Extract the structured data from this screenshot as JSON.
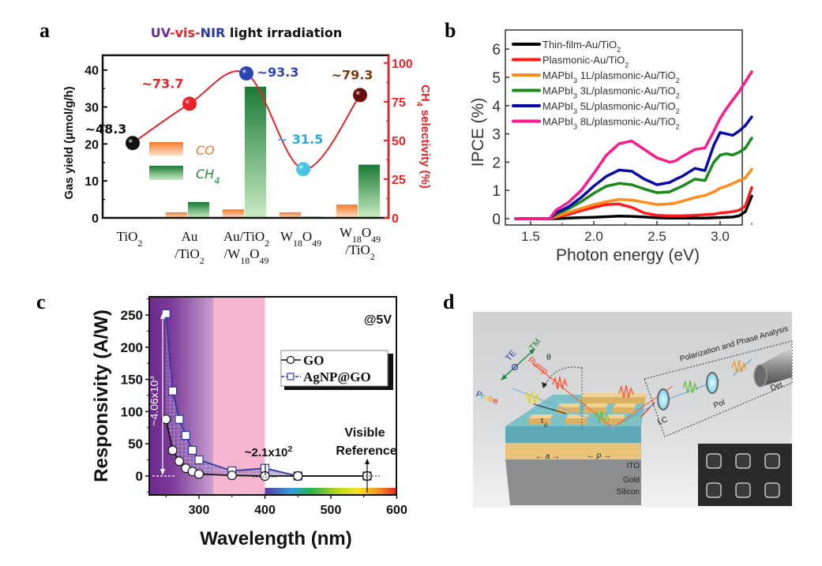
{
  "panels": {
    "a": "a",
    "b": "b",
    "c": "c",
    "d": "d"
  },
  "chart_data": [
    {
      "panel": "a",
      "type": "bar",
      "title_parts": [
        {
          "text": "UV",
          "color": "#6a2c91"
        },
        {
          "text": "-vis-",
          "color": "#e8242a"
        },
        {
          "text": "NIR",
          "color": "#2b3aa0"
        },
        {
          "text": " light irradiation",
          "color": "#111111"
        }
      ],
      "categories": [
        "TiO2",
        "Au/TiO2",
        "Au/TiO2/W18O49",
        "W18O49",
        "W18O49/TiO2"
      ],
      "category_labels": [
        [
          [
            {
              "t": "TiO"
            },
            {
              "t": "2",
              "sub": true
            }
          ]
        ],
        [
          [
            {
              "t": "Au"
            }
          ],
          [
            {
              "t": "/TiO"
            },
            {
              "t": "2",
              "sub": true
            }
          ]
        ],
        [
          [
            {
              "t": "Au/TiO"
            },
            {
              "t": "2",
              "sub": true
            }
          ],
          [
            {
              "t": "/W"
            },
            {
              "t": "18",
              "sub": true
            },
            {
              "t": "O"
            },
            {
              "t": "49",
              "sub": true
            }
          ]
        ],
        [
          [
            {
              "t": "W"
            },
            {
              "t": "18",
              "sub": true
            },
            {
              "t": "O"
            },
            {
              "t": "49",
              "sub": true
            }
          ]
        ],
        [
          [
            {
              "t": "W"
            },
            {
              "t": "18",
              "sub": true
            },
            {
              "t": "O"
            },
            {
              "t": "49",
              "sub": true
            }
          ],
          [
            {
              "t": "/TiO"
            },
            {
              "t": "2",
              "sub": true
            }
          ]
        ]
      ],
      "series": [
        {
          "name": "CO",
          "axis": "left",
          "color": "#f07a2a",
          "values": [
            0.1,
            1.5,
            2.3,
            1.5,
            3.6
          ]
        },
        {
          "name": "CH4",
          "axis": "left",
          "color": "#1f8a3a",
          "values": [
            0.1,
            4.3,
            35.5,
            0.3,
            14.4
          ]
        },
        {
          "name": "CH4 selectivity",
          "axis": "right",
          "type": "line",
          "color": "#e8242a",
          "values": [
            48.3,
            73.7,
            93.3,
            31.5,
            79.3
          ],
          "point_colors": [
            "#111111",
            "#e8242a",
            "#2d44b5",
            "#4cc3e0",
            "#6b0d0d"
          ],
          "label_colors": [
            "#111111",
            "#e8242a",
            "#2d44b5",
            "#2aa8de",
            "#7a3a14"
          ],
          "labels": [
            "~48.3",
            "~73.7",
            "~93.3",
            "~ 31.5",
            "~79.3"
          ]
        }
      ],
      "legend": [
        {
          "name": "CO",
          "color": "#f07a2a"
        },
        {
          "name": "CH",
          "sub": "4",
          "color": "#1f8a3a"
        }
      ],
      "legend_position": "center-left",
      "ylabel": "Gas yield (μmol/g/h)",
      "ylim": [
        0,
        44
      ],
      "yticks": [
        0,
        10,
        20,
        30,
        40
      ],
      "y2label": "CH4 selectivity (%)",
      "y2label_parts": [
        {
          "t": "CH"
        },
        {
          "t": "4",
          "sub": true
        },
        {
          "t": " selectivity (%)"
        }
      ],
      "y2lim": [
        0,
        105
      ],
      "y2ticks": [
        0,
        25,
        50,
        75,
        100
      ],
      "y2_color": "#e8242a"
    },
    {
      "panel": "b",
      "type": "line",
      "xlabel": "Photon energy (eV)",
      "ylabel": "IPCE (%)",
      "xlim": [
        1.3,
        3.35
      ],
      "ylim": [
        -0.2,
        6.6
      ],
      "xticks": [
        1.5,
        2.0,
        2.5,
        3.0
      ],
      "xtick_labels": [
        "1.5",
        "2.0",
        "2.5",
        "3.0"
      ],
      "yticks": [
        0,
        1,
        2,
        3,
        4,
        5,
        6
      ],
      "x": [
        1.38,
        1.45,
        1.5,
        1.55,
        1.6,
        1.65,
        1.7,
        1.8,
        1.9,
        2.0,
        2.1,
        2.2,
        2.3,
        2.4,
        2.5,
        2.6,
        2.65,
        2.7,
        2.8,
        2.88,
        2.95,
        3.0,
        3.05,
        3.1,
        3.15,
        3.2,
        3.25
      ],
      "legend_position": "top-left",
      "series": [
        {
          "name": "Thin-film-Au/TiO2",
          "label_parts": [
            {
              "t": "Thin-film-Au/TiO"
            },
            {
              "t": "2",
              "sub": true
            }
          ],
          "color": "#000000",
          "values": [
            0,
            0,
            0,
            0,
            0,
            0,
            0,
            0.02,
            0.04,
            0.05,
            0.07,
            0.09,
            0.08,
            0.06,
            0.03,
            0.02,
            0.02,
            0.02,
            0.02,
            0.02,
            0.03,
            0.04,
            0.05,
            0.06,
            0.1,
            0.25,
            0.8
          ]
        },
        {
          "name": "Plasmonic-Au/TiO2",
          "label_parts": [
            {
              "t": "Plasmonic-Au/TiO"
            },
            {
              "t": "2",
              "sub": true
            }
          ],
          "color": "#ff1a1a",
          "values": [
            0,
            0,
            0,
            0,
            0,
            0,
            0.05,
            0.15,
            0.28,
            0.4,
            0.5,
            0.52,
            0.4,
            0.2,
            0.12,
            0.1,
            0.1,
            0.1,
            0.12,
            0.14,
            0.16,
            0.2,
            0.22,
            0.25,
            0.3,
            0.45,
            1.1
          ]
        },
        {
          "name": "MAPbI3 1L/plasmonic-Au/TiO2",
          "label_parts": [
            {
              "t": "MAPbI"
            },
            {
              "t": "3",
              "sub": true
            },
            {
              "t": " 1L/plasmonic-Au/TiO"
            },
            {
              "t": "2",
              "sub": true
            }
          ],
          "color": "#ff8c1a",
          "values": [
            0,
            0,
            0,
            0,
            0,
            0,
            0.08,
            0.22,
            0.36,
            0.5,
            0.6,
            0.68,
            0.66,
            0.58,
            0.5,
            0.52,
            0.56,
            0.62,
            0.75,
            0.82,
            0.95,
            1.08,
            1.15,
            1.25,
            1.35,
            1.45,
            1.75
          ]
        },
        {
          "name": "MAPbI3 3L/plasmonic-Au/TiO2",
          "label_parts": [
            {
              "t": "MAPbI"
            },
            {
              "t": "3",
              "sub": true
            },
            {
              "t": " 3L/plasmonic-Au/TiO"
            },
            {
              "t": "2",
              "sub": true
            }
          ],
          "color": "#1a8a1a",
          "values": [
            0,
            0,
            0,
            0,
            0,
            0,
            0.15,
            0.35,
            0.6,
            0.9,
            1.15,
            1.25,
            1.2,
            1.05,
            0.92,
            0.95,
            1.05,
            1.15,
            1.4,
            1.35,
            2.0,
            2.25,
            2.3,
            2.25,
            2.35,
            2.5,
            2.85
          ]
        },
        {
          "name": "MAPbI3 5L/plasmonic-Au/TiO2",
          "label_parts": [
            {
              "t": "MAPbI"
            },
            {
              "t": "3",
              "sub": true
            },
            {
              "t": " 5L/plasmonic-Au/TiO"
            },
            {
              "t": "2",
              "sub": true
            }
          ],
          "color": "#0a0aa8",
          "values": [
            0,
            0,
            0,
            0,
            0,
            0,
            0.2,
            0.42,
            0.75,
            1.15,
            1.5,
            1.72,
            1.68,
            1.4,
            1.2,
            1.28,
            1.4,
            1.5,
            1.78,
            1.7,
            2.6,
            3.05,
            3.0,
            2.95,
            3.1,
            3.3,
            3.6
          ]
        },
        {
          "name": "MAPbI3 8L/plasmonic-Au/TiO2",
          "label_parts": [
            {
              "t": "MAPbI"
            },
            {
              "t": "3",
              "sub": true
            },
            {
              "t": " 8L/plasmonic-Au/TiO"
            },
            {
              "t": "2",
              "sub": true
            }
          ],
          "color": "#ff1a8c",
          "values": [
            0,
            0,
            0,
            0,
            0,
            0,
            0.3,
            0.58,
            1.0,
            1.6,
            2.25,
            2.65,
            2.75,
            2.45,
            2.15,
            2.0,
            2.05,
            2.2,
            2.45,
            2.5,
            3.1,
            3.55,
            3.9,
            4.2,
            4.5,
            4.85,
            5.2
          ]
        }
      ]
    },
    {
      "panel": "c",
      "type": "line",
      "xlabel": "Wavelength (nm)",
      "ylabel": "Responsivity (A/W)",
      "xlim": [
        224,
        600
      ],
      "ylim": [
        -29,
        276
      ],
      "xticks": [
        300,
        400,
        500,
        600
      ],
      "yticks": [
        0,
        50,
        100,
        150,
        200,
        250
      ],
      "annotation_voltage": "@5V",
      "legend_position": "top-right",
      "regions": [
        {
          "from": 224,
          "to": 322,
          "color": "#6b2a8f",
          "gradient_to": "#c69ad0",
          "label": "UV"
        },
        {
          "from": 322,
          "to": 400,
          "color": "#f5b4cf",
          "label": "near-UV"
        }
      ],
      "visible_spectrum_bar": {
        "from": 400,
        "to": 600
      },
      "series": [
        {
          "name": "GO",
          "marker": "circle",
          "color": "#111111",
          "x": [
            250,
            260,
            270,
            280,
            290,
            300,
            350,
            400,
            450,
            555
          ],
          "values": [
            88,
            40,
            23,
            12,
            7,
            3,
            1,
            0,
            0,
            0
          ]
        },
        {
          "name": "AgNP@GO",
          "marker": "square",
          "color": "#2b3a9c",
          "x": [
            250,
            260,
            270,
            280,
            290,
            300,
            350,
            400,
            450,
            555
          ],
          "values": [
            252,
            132,
            88,
            63,
            40,
            25,
            8,
            12,
            0,
            0
          ]
        }
      ],
      "annotations": [
        {
          "text_base": "~4.06x10",
          "text_sup": "3",
          "note": "enhancement at 250 nm"
        },
        {
          "text_base": "~2.1x10",
          "text_sup": "2",
          "note": "enhancement at 400 nm"
        },
        {
          "text": "Visible",
          "text2": "Reference"
        }
      ]
    }
  ],
  "diagram_d": {
    "labels": {
      "te": "TE",
      "tm": "TM",
      "pump": "Pump",
      "probe": "Probe",
      "theta": "θ",
      "tau": "τ",
      "tau_sub": "d",
      "box_title": "Polarization and Phase Analysis",
      "lc": "LC",
      "pol": "Pol",
      "det": "Det",
      "a": "a",
      "p": "p",
      "ito": "ITO",
      "gold": "Gold",
      "silicon": "Silicon"
    },
    "colors": {
      "background": "#d9dadb",
      "ito": "#5ea9b8",
      "gold": "#e8c47a",
      "silicon": "#8c8d8f",
      "te": "#2b3aa0",
      "tm": "#1f8a3a",
      "pump": "#ff4a2a"
    }
  }
}
